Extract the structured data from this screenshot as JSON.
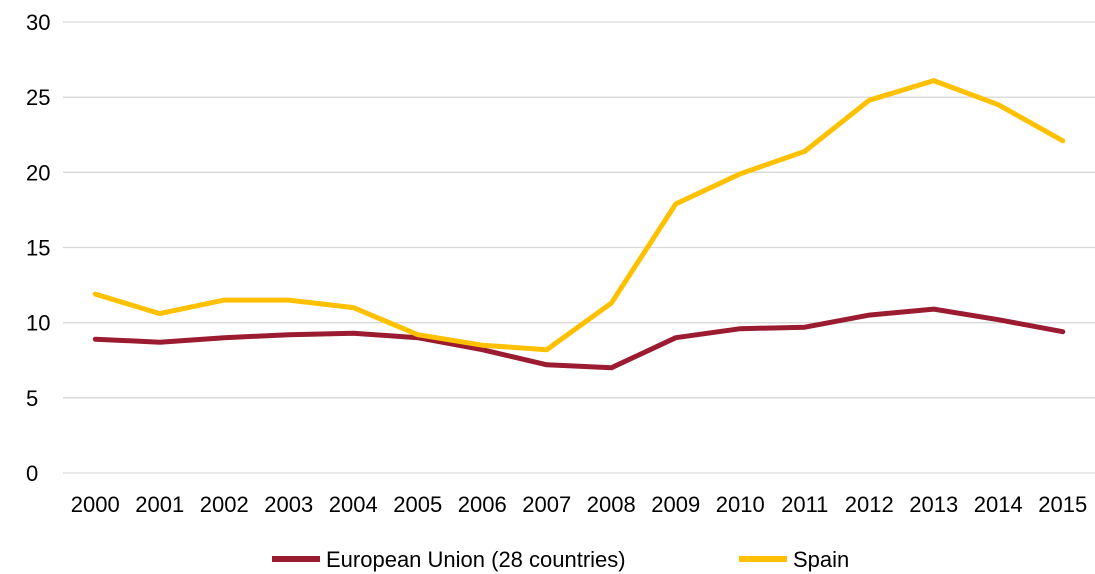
{
  "chart_data": {
    "type": "line",
    "title": "",
    "xlabel": "",
    "ylabel": "",
    "ylim": [
      0,
      30
    ],
    "yticks": [
      "0",
      "5",
      "10",
      "15",
      "20",
      "25",
      "30"
    ],
    "categories": [
      "2000",
      "2001",
      "2002",
      "2003",
      "2004",
      "2005",
      "2006",
      "2007",
      "2008",
      "2009",
      "2010",
      "2011",
      "2012",
      "2013",
      "2014",
      "2015"
    ],
    "series": [
      {
        "name": "European Union (28 countries)",
        "color": "#9b1b30",
        "values": [
          8.9,
          8.7,
          9.0,
          9.2,
          9.3,
          9.0,
          8.2,
          7.2,
          7.0,
          9.0,
          9.6,
          9.7,
          10.5,
          10.9,
          10.2,
          9.4
        ]
      },
      {
        "name": "Spain",
        "color": "#ffc000",
        "values": [
          11.9,
          10.6,
          11.5,
          11.5,
          11.0,
          9.2,
          8.5,
          8.2,
          11.3,
          17.9,
          19.9,
          21.4,
          24.8,
          26.1,
          24.5,
          22.1
        ]
      }
    ],
    "grid": true,
    "legend_position": "bottom"
  }
}
